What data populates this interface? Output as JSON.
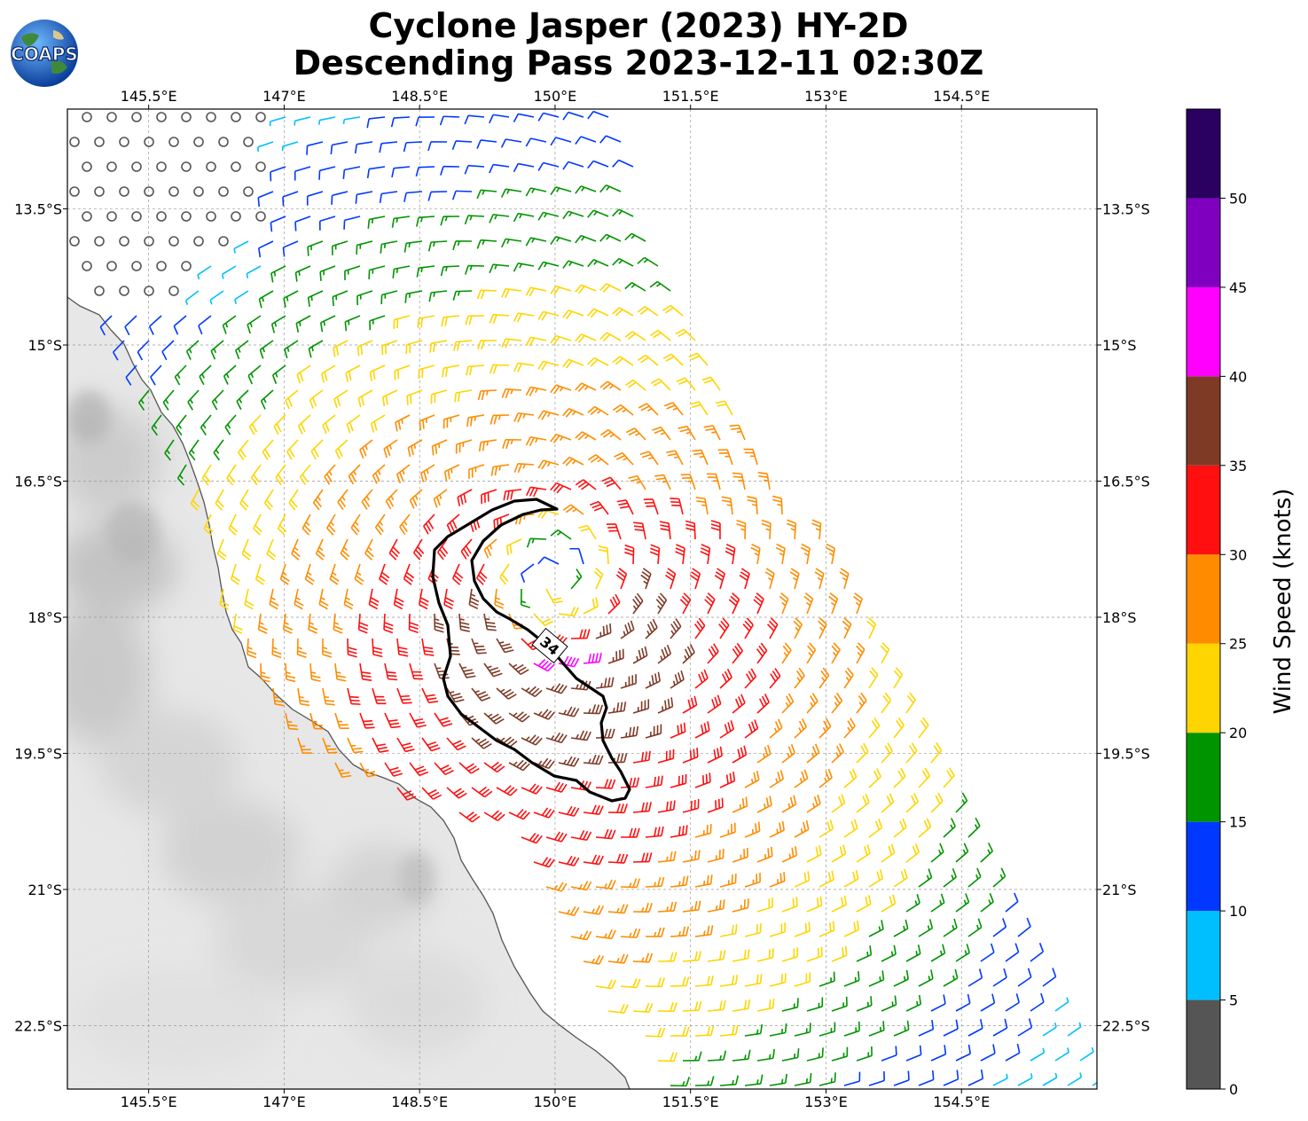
{
  "title_line1": "Cyclone Jasper (2023) HY-2D",
  "title_line2": "Descending Pass 2023-12-11 02:30Z",
  "logo_text": "COAPS",
  "lon_ticks": [
    "145.5°E",
    "147°E",
    "148.5°E",
    "150°E",
    "151.5°E",
    "153°E",
    "154.5°E"
  ],
  "lat_ticks": [
    "13.5°S",
    "15°S",
    "16.5°S",
    "18°S",
    "19.5°S",
    "21°S",
    "22.5°S"
  ],
  "contour_label": "34",
  "colorbar": {
    "label": "Wind Speed (knots)",
    "ticks": [
      "0",
      "5",
      "10",
      "15",
      "20",
      "25",
      "30",
      "35",
      "40",
      "45",
      "50"
    ],
    "bins": [
      {
        "min": 0,
        "max": 5,
        "color": "#555555"
      },
      {
        "min": 5,
        "max": 10,
        "color": "#00bfff"
      },
      {
        "min": 10,
        "max": 15,
        "color": "#0038ff"
      },
      {
        "min": 15,
        "max": 20,
        "color": "#009400"
      },
      {
        "min": 20,
        "max": 25,
        "color": "#ffd500"
      },
      {
        "min": 25,
        "max": 30,
        "color": "#ff8c00"
      },
      {
        "min": 30,
        "max": 35,
        "color": "#ff0f0f"
      },
      {
        "min": 35,
        "max": 40,
        "color": "#7f3a26"
      },
      {
        "min": 40,
        "max": 45,
        "color": "#ff00ff"
      },
      {
        "min": 45,
        "max": 50,
        "color": "#8000bf"
      },
      {
        "min": 50,
        "max": 55,
        "color": "#2a0060"
      }
    ]
  },
  "storm_center": {
    "lon": 150.0,
    "lat": -17.6
  },
  "extent": {
    "lon_min": 144.6,
    "lon_max": 156.0,
    "lat_min": -23.2,
    "lat_max": -12.4
  }
}
